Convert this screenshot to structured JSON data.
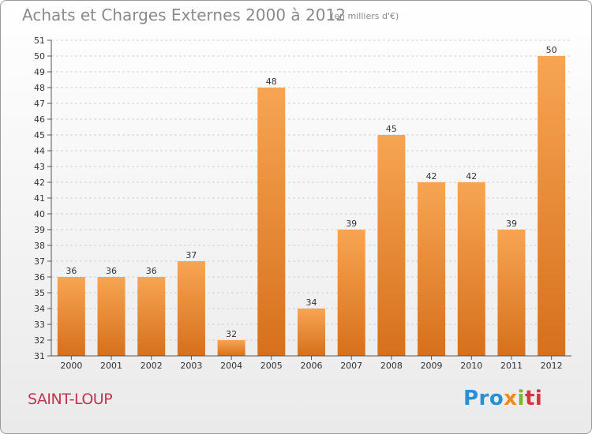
{
  "header": {
    "title": "Achats et Charges Externes 2000 à 2012",
    "unit": "(en milliers d'€)"
  },
  "footer": {
    "commune": "SAINT-LOUP",
    "logo_parts": [
      "Pro",
      "x",
      "i",
      "ti"
    ]
  },
  "colors": {
    "bar_light": "#f7a553",
    "bar_dark": "#d6701c",
    "grid": "#d2d2d2",
    "title": "#8a8a8a",
    "commune": "#c4344e"
  },
  "chart_data": {
    "type": "bar",
    "title": "Achats et Charges Externes 2000 à 2012",
    "subtitle": "(en milliers d'€)",
    "xlabel": "",
    "ylabel": "",
    "categories": [
      "2000",
      "2001",
      "2002",
      "2003",
      "2004",
      "2005",
      "2006",
      "2007",
      "2008",
      "2009",
      "2010",
      "2011",
      "2012"
    ],
    "values": [
      36,
      36,
      36,
      37,
      32,
      48,
      34,
      39,
      45,
      42,
      42,
      39,
      50
    ],
    "ylim": [
      31,
      51
    ],
    "yticks": [
      31,
      32,
      33,
      34,
      35,
      36,
      37,
      38,
      39,
      40,
      41,
      42,
      43,
      44,
      45,
      46,
      47,
      48,
      49,
      50,
      51
    ],
    "grid": true,
    "legend": "none"
  }
}
